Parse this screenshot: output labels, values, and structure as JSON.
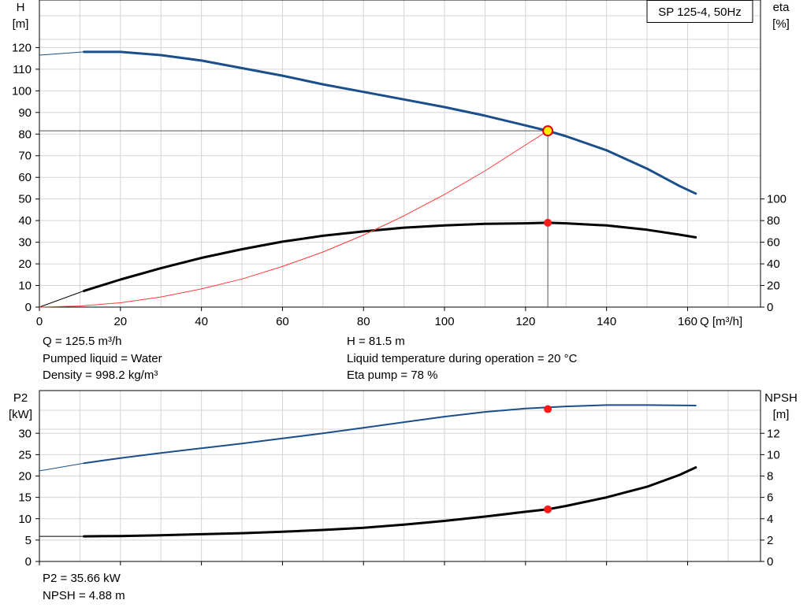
{
  "chart_data": [
    {
      "type": "line",
      "title": "SP 125-4, 50Hz",
      "xlabel": "Q [m³/h]",
      "xlim": [
        0,
        178
      ],
      "x_ticks": [
        0,
        20,
        40,
        60,
        80,
        100,
        120,
        140,
        160
      ],
      "y_left": {
        "label_line1": "H",
        "label_line2": "[m]",
        "lim": [
          0,
          142
        ],
        "ticks": [
          0,
          10,
          20,
          30,
          40,
          50,
          60,
          70,
          80,
          90,
          100,
          110,
          120
        ]
      },
      "y_right": {
        "label_line1": "eta",
        "label_line2": "[%]",
        "lim": [
          0,
          284
        ],
        "ticks": [
          0,
          20,
          40,
          60,
          80,
          100
        ]
      },
      "grid": true,
      "series": [
        {
          "axis": "left",
          "color": "#1a4f8b",
          "points": [
            [
              0,
              116.5
            ],
            [
              11,
              118
            ],
            [
              20,
              118
            ],
            [
              30,
              116.5
            ],
            [
              40,
              114
            ],
            [
              50,
              110.5
            ],
            [
              60,
              107
            ],
            [
              70,
              103
            ],
            [
              80,
              99.5
            ],
            [
              90,
              96
            ],
            [
              100,
              92.5
            ],
            [
              110,
              88.5
            ],
            [
              120,
              84
            ],
            [
              125.5,
              81.5
            ],
            [
              130,
              79
            ],
            [
              140,
              72.5
            ],
            [
              150,
              64
            ],
            [
              158,
              56
            ],
            [
              162,
              52.5
            ]
          ]
        },
        {
          "axis": "right",
          "color": "#000000",
          "points": [
            [
              0,
              0
            ],
            [
              11,
              15
            ],
            [
              20,
              25.5
            ],
            [
              30,
              36
            ],
            [
              40,
              45.5
            ],
            [
              50,
              53.5
            ],
            [
              60,
              60.5
            ],
            [
              70,
              66
            ],
            [
              80,
              70
            ],
            [
              90,
              73.5
            ],
            [
              100,
              75.5
            ],
            [
              110,
              77
            ],
            [
              120,
              77.5
            ],
            [
              125.5,
              78
            ],
            [
              130,
              77.5
            ],
            [
              140,
              75.5
            ],
            [
              150,
              71.5
            ],
            [
              158,
              67
            ],
            [
              162,
              64.5
            ]
          ]
        },
        {
          "axis": "left",
          "color": "#ff3a3a",
          "role": "system-curve",
          "points": [
            [
              0,
              0
            ],
            [
              10,
              0.5
            ],
            [
              20,
              2
            ],
            [
              30,
              4.7
            ],
            [
              40,
              8.4
            ],
            [
              50,
              13
            ],
            [
              60,
              18.8
            ],
            [
              70,
              25.5
            ],
            [
              80,
              33.3
            ],
            [
              90,
              42.2
            ],
            [
              100,
              52.1
            ],
            [
              110,
              63
            ],
            [
              120,
              75
            ],
            [
              125.5,
              81.5
            ]
          ]
        }
      ],
      "operating_point": {
        "q": 125.5,
        "h": 81.5,
        "eta": 78
      }
    },
    {
      "type": "line",
      "xlim": [
        0,
        178
      ],
      "x_ticks": [
        0,
        20,
        40,
        60,
        80,
        100,
        120,
        140,
        160
      ],
      "y_left": {
        "label_line1": "P2",
        "label_line2": "[kW]",
        "lim": [
          0,
          40
        ],
        "ticks": [
          0,
          5,
          10,
          15,
          20,
          25,
          30
        ]
      },
      "y_right": {
        "label_line1": "NPSH",
        "label_line2": "[m]",
        "lim": [
          0,
          16
        ],
        "ticks": [
          0,
          2,
          4,
          6,
          8,
          10,
          12
        ]
      },
      "grid": true,
      "series": [
        {
          "axis": "left",
          "color": "#1a4f8b",
          "points": [
            [
              0,
              21.2
            ],
            [
              11,
              23
            ],
            [
              20,
              24.2
            ],
            [
              30,
              25.4
            ],
            [
              40,
              26.5
            ],
            [
              50,
              27.6
            ],
            [
              60,
              28.8
            ],
            [
              70,
              30
            ],
            [
              80,
              31.3
            ],
            [
              90,
              32.6
            ],
            [
              100,
              33.9
            ],
            [
              110,
              35
            ],
            [
              120,
              35.8
            ],
            [
              125.5,
              35.66
            ],
            [
              130,
              36.3
            ],
            [
              140,
              36.6
            ],
            [
              150,
              36.6
            ],
            [
              162,
              36.5
            ]
          ]
        },
        {
          "axis": "right",
          "color": "#000000",
          "points": [
            [
              0,
              2.35
            ],
            [
              11,
              2.35
            ],
            [
              20,
              2.38
            ],
            [
              30,
              2.45
            ],
            [
              40,
              2.55
            ],
            [
              50,
              2.65
            ],
            [
              60,
              2.78
            ],
            [
              70,
              2.95
            ],
            [
              80,
              3.15
            ],
            [
              90,
              3.45
            ],
            [
              100,
              3.8
            ],
            [
              110,
              4.2
            ],
            [
              120,
              4.65
            ],
            [
              125.5,
              4.88
            ],
            [
              130,
              5.2
            ],
            [
              140,
              6.0
            ],
            [
              150,
              7.0
            ],
            [
              158,
              8.1
            ],
            [
              162,
              8.8
            ]
          ]
        }
      ],
      "operating_point": {
        "q": 125.5,
        "p2": 35.66,
        "npsh": 4.88
      }
    }
  ],
  "info_top": {
    "q": "Q = 125.5 m³/h",
    "liquid": "Pumped liquid = Water",
    "density": "Density = 998.2 kg/m³",
    "h": "H = 81.5 m",
    "temp": "Liquid temperature during operation = 20 °C",
    "eta": "Eta pump = 78 %"
  },
  "info_bottom": {
    "p2": "P2 = 35.66 kW",
    "npsh": "NPSH = 4.88 m"
  }
}
